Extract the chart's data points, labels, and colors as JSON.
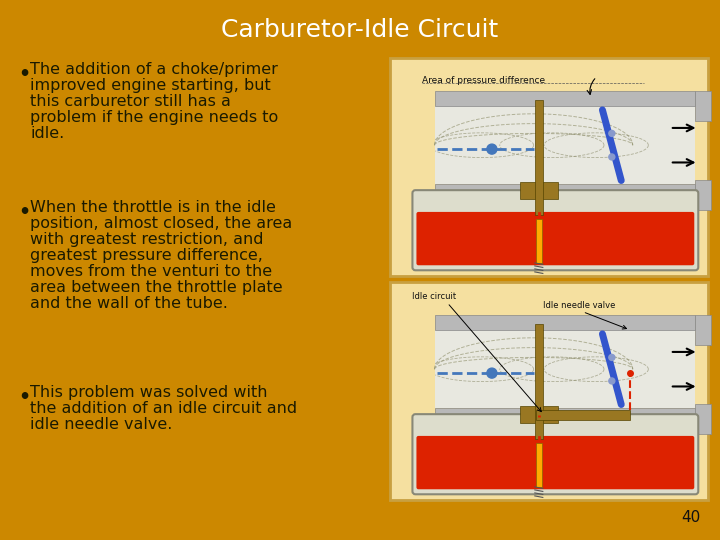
{
  "title": "Carburetor-Idle Circuit",
  "title_color": "#FFFFFF",
  "title_fontsize": 18,
  "background_color": "#CC8800",
  "text_color": "#1A1A00",
  "bullet_fontsize": 11.5,
  "bullets": [
    "The addition of a choke/primer\nimproved engine starting, but\nthis carburetor still has a\nproblem if the engine needs to\nidle.",
    "When the throttle is in the idle\nposition, almost closed, the area\nwith greatest restriction, and\ngreatest pressure difference,\nmoves from the venturi to the\narea between the throttle plate\nand the wall of the tube.",
    "This problem was solved with\nthe addition of an idle circuit and\nidle needle valve."
  ],
  "page_number": "40",
  "diag_bg": "#F5E0A0",
  "tube_gray": "#B8B8B8",
  "tube_dark": "#888888",
  "air_white": "#E8E8E0",
  "fuel_red": "#DD2200",
  "bowl_bg": "#CCCCCC",
  "throttle_blue": "#3355CC",
  "jet_gold": "#997722",
  "float_blue": "#4477BB"
}
